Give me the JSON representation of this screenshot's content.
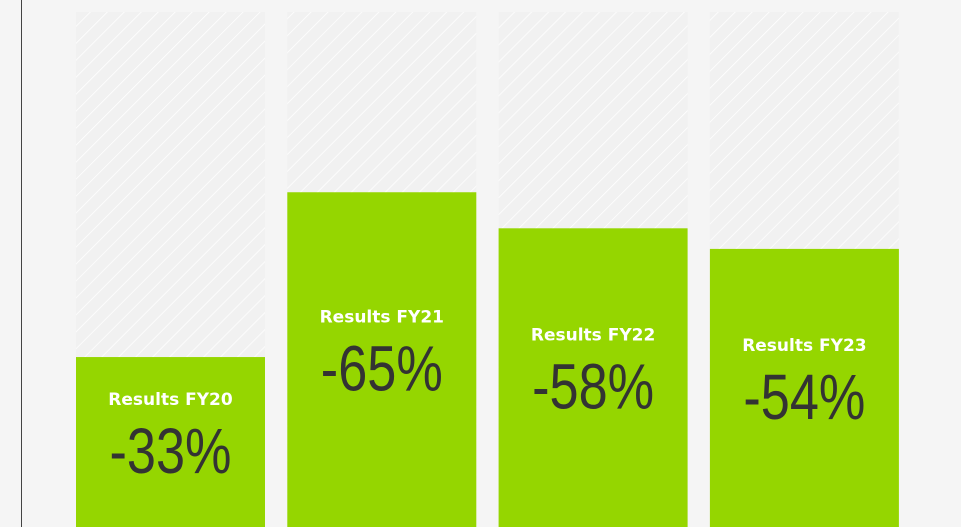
{
  "chart_data": {
    "type": "bar",
    "categories": [
      "Results FY20",
      "Results FY21",
      "Results FY22",
      "Results FY23"
    ],
    "values": [
      -33,
      -65,
      -58,
      -54
    ],
    "value_labels": [
      "-33%",
      "-65%",
      "-58%",
      "-54%"
    ],
    "color": "#95d600",
    "ylim": [
      0,
      -100
    ]
  }
}
